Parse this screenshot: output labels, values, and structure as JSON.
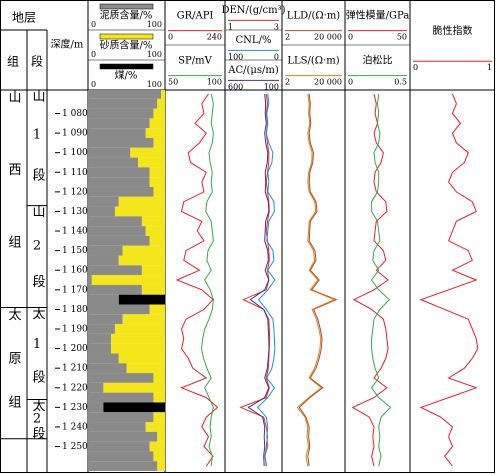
{
  "header": {
    "strata": "地层",
    "formation": "组",
    "member": "段",
    "depth": "深度/m"
  },
  "chart_data": {
    "type": "well-log",
    "ylim": [
      1068,
      1263
    ],
    "yticks": [
      {
        "value": 1080,
        "label": "1 080"
      },
      {
        "value": 1090,
        "label": "1 090"
      },
      {
        "value": 1100,
        "label": "1 100"
      },
      {
        "value": 1110,
        "label": "1 110"
      },
      {
        "value": 1120,
        "label": "1 120"
      },
      {
        "value": 1130,
        "label": "1 130"
      },
      {
        "value": 1140,
        "label": "1 140"
      },
      {
        "value": 1150,
        "label": "1 150"
      },
      {
        "value": 1160,
        "label": "1 160"
      },
      {
        "value": 1170,
        "label": "1 170"
      },
      {
        "value": 1180,
        "label": "1 180"
      },
      {
        "value": 1190,
        "label": "1 190"
      },
      {
        "value": 1200,
        "label": "1 200"
      },
      {
        "value": 1210,
        "label": "1 210"
      },
      {
        "value": 1220,
        "label": "1 220"
      },
      {
        "value": 1230,
        "label": "1 230"
      },
      {
        "value": 1240,
        "label": "1 240"
      },
      {
        "value": 1250,
        "label": "1 250"
      }
    ],
    "depth": [
      1070,
      1075,
      1080,
      1085,
      1090,
      1095,
      1100,
      1105,
      1110,
      1115,
      1120,
      1125,
      1130,
      1135,
      1140,
      1145,
      1150,
      1155,
      1160,
      1165,
      1170,
      1175,
      1180,
      1185,
      1190,
      1195,
      1200,
      1205,
      1210,
      1215,
      1220,
      1225,
      1230,
      1235,
      1240,
      1245,
      1250,
      1255,
      1260
    ],
    "strata": {
      "formations": [
        {
          "name": "山西组",
          "top": 1068,
          "bottom": 1179
        },
        {
          "name": "太原组",
          "top": 1179,
          "bottom": 1246
        }
      ],
      "members": [
        {
          "name": "山1段",
          "top": 1068,
          "bottom": 1127
        },
        {
          "name": "山2段",
          "top": 1127,
          "bottom": 1179
        },
        {
          "name": "太1段",
          "top": 1179,
          "bottom": 1226
        },
        {
          "name": "太2段",
          "top": 1226,
          "bottom": 1246
        }
      ]
    },
    "lithology": {
      "xlim": [
        0,
        100
      ],
      "series": [
        {
          "name": "泥质含量/%",
          "color": "#8a8a8a",
          "xticks": [
            0,
            100
          ],
          "values": [
            95,
            90,
            85,
            80,
            75,
            85,
            55,
            65,
            80,
            80,
            85,
            40,
            35,
            70,
            75,
            80,
            45,
            40,
            70,
            5,
            70,
            40,
            80,
            45,
            35,
            30,
            30,
            40,
            50,
            85,
            20,
            85,
            20,
            85,
            75,
            90,
            80,
            85,
            90
          ]
        },
        {
          "name": "砂质含量/%",
          "color": "#f5e61a",
          "xticks": [
            0,
            100
          ],
          "values": [
            5,
            10,
            15,
            20,
            25,
            15,
            45,
            35,
            20,
            20,
            15,
            60,
            65,
            30,
            25,
            20,
            55,
            60,
            30,
            95,
            30,
            0,
            20,
            55,
            65,
            70,
            70,
            60,
            50,
            15,
            80,
            15,
            0,
            15,
            25,
            10,
            20,
            15,
            10
          ]
        },
        {
          "name": "煤/%",
          "color": "#000000",
          "xticks": [
            0,
            100
          ],
          "values": [
            0,
            0,
            0,
            0,
            0,
            0,
            0,
            0,
            0,
            0,
            0,
            0,
            0,
            0,
            0,
            0,
            0,
            0,
            0,
            0,
            0,
            60,
            0,
            0,
            0,
            0,
            0,
            0,
            0,
            0,
            0,
            0,
            80,
            0,
            0,
            0,
            0,
            0,
            0
          ]
        }
      ]
    },
    "tracks": [
      {
        "curves": [
          {
            "name": "GR/API",
            "color": "#e8202a",
            "xlim": [
              0,
              240
            ],
            "xticks": [
              0,
              240
            ],
            "values": [
              180,
              150,
              160,
              120,
              170,
              140,
              90,
              100,
              170,
              150,
              160,
              70,
              60,
              150,
              130,
              160,
              80,
              70,
              140,
              40,
              150,
              200,
              160,
              80,
              60,
              70,
              60,
              90,
              110,
              170,
              60,
              170,
              220,
              170,
              150,
              180,
              160,
              200,
              170
            ]
          },
          {
            "name": "SP/mV",
            "color": "#3aa84a",
            "xlim": [
              50,
              100
            ],
            "xticks": [
              50,
              100
            ],
            "values": [
              90,
              92,
              91,
              90,
              92,
              91,
              88,
              89,
              91,
              90,
              91,
              86,
              85,
              90,
              91,
              92,
              87,
              86,
              90,
              84,
              89,
              92,
              91,
              88,
              84,
              82,
              81,
              83,
              86,
              90,
              84,
              88,
              92,
              90,
              89,
              90,
              88,
              91,
              90
            ]
          }
        ]
      },
      {
        "curves": [
          {
            "name": "DEN/(g/cm³)",
            "color": "#e0302a",
            "xlim": [
              1,
              3
            ],
            "xticks": [
              1,
              3
            ],
            "values": [
              2.5,
              2.55,
              2.5,
              2.55,
              2.5,
              2.55,
              2.6,
              2.6,
              2.55,
              2.5,
              2.55,
              2.6,
              2.62,
              2.55,
              2.5,
              2.55,
              2.6,
              2.62,
              2.55,
              2.6,
              2.5,
              1.6,
              2.4,
              2.6,
              2.62,
              2.63,
              2.62,
              2.6,
              2.58,
              2.5,
              2.62,
              2.5,
              1.5,
              2.4,
              2.5,
              2.55,
              2.5,
              2.45,
              2.5
            ]
          },
          {
            "name": "CNL/%",
            "color": "#1f8fdc",
            "xlim": [
              100,
              0
            ],
            "xticks": [
              100,
              0
            ],
            "values": [
              22,
              20,
              24,
              22,
              25,
              20,
              12,
              14,
              22,
              20,
              22,
              10,
              9,
              20,
              22,
              24,
              12,
              10,
              22,
              8,
              22,
              40,
              25,
              12,
              10,
              9,
              8,
              10,
              14,
              24,
              9,
              22,
              42,
              25,
              22,
              24,
              22,
              28,
              24
            ]
          },
          {
            "name": "AC/(μs/m)",
            "color": "#5a2a7a",
            "xlim": [
              600,
              100
            ],
            "xticks": [
              600,
              100
            ],
            "values": [
              240,
              230,
              235,
              225,
              240,
              230,
              210,
              215,
              235,
              230,
              235,
              205,
              200,
              230,
              235,
              240,
              210,
              205,
              235,
              200,
              240,
              380,
              250,
              210,
              205,
              200,
              198,
              205,
              215,
              240,
              200,
              240,
              400,
              260,
              240,
              245,
              240,
              250,
              245
            ]
          }
        ]
      },
      {
        "curves": [
          {
            "name": "LLD/(Ω·m)",
            "color": "#a0522d",
            "scale": "log",
            "xlim": [
              2,
              20000
            ],
            "xticks": [
              2,
              {
                "value": 20000,
                "label": "20 000"
              }
            ],
            "values": [
              100,
              120,
              110,
              130,
              100,
              120,
              200,
              180,
              110,
              100,
              120,
              300,
              350,
              120,
              110,
              100,
              250,
              300,
              120,
              500,
              150,
              8000,
              200,
              400,
              600,
              800,
              700,
              500,
              300,
              120,
              900,
              110,
              20,
              60,
              100,
              90,
              110,
              80,
              100
            ]
          },
          {
            "name": "LLS/(Ω·m)",
            "color": "#e08020",
            "scale": "log",
            "xlim": [
              2,
              20000
            ],
            "xticks": [
              2,
              {
                "value": 20000,
                "label": "20 000"
              }
            ],
            "values": [
              80,
              100,
              90,
              110,
              80,
              100,
              160,
              150,
              90,
              80,
              100,
              250,
              280,
              100,
              90,
              80,
              200,
              240,
              100,
              400,
              120,
              6000,
              160,
              320,
              480,
              650,
              560,
              400,
              240,
              100,
              700,
              90,
              15,
              50,
              80,
              70,
              90,
              60,
              80
            ]
          }
        ]
      },
      {
        "curves": [
          {
            "name": "弹性模量/GPa",
            "color": "#e8202a",
            "xlim": [
              0,
              50
            ],
            "xticks": [
              0,
              50
            ],
            "values": [
              22,
              24,
              23,
              25,
              22,
              24,
              30,
              28,
              23,
              22,
              24,
              32,
              33,
              24,
              23,
              22,
              30,
              32,
              24,
              34,
              22,
              5,
              20,
              30,
              32,
              33,
              34,
              32,
              28,
              22,
              33,
              22,
              4,
              18,
              22,
              21,
              22,
              20,
              22
            ]
          },
          {
            "name": "泊松比",
            "color": "#3aa84a",
            "xlim": [
              0,
              0.5
            ],
            "xticks": [
              0,
              0.5
            ],
            "values": [
              0.26,
              0.25,
              0.26,
              0.25,
              0.27,
              0.26,
              0.22,
              0.23,
              0.26,
              0.26,
              0.25,
              0.2,
              0.2,
              0.25,
              0.26,
              0.27,
              0.22,
              0.21,
              0.26,
              0.2,
              0.26,
              0.35,
              0.27,
              0.22,
              0.21,
              0.2,
              0.2,
              0.21,
              0.23,
              0.26,
              0.2,
              0.26,
              0.36,
              0.28,
              0.26,
              0.27,
              0.26,
              0.28,
              0.26
            ]
          }
        ]
      },
      {
        "curves": [
          {
            "name": "脆性指数",
            "color": "#e8202a",
            "xlim": [
              0,
              1
            ],
            "xticks": [
              0,
              1
            ],
            "values": [
              0.5,
              0.55,
              0.5,
              0.6,
              0.5,
              0.55,
              0.7,
              0.65,
              0.5,
              0.45,
              0.55,
              0.75,
              0.8,
              0.55,
              0.5,
              0.45,
              0.7,
              0.75,
              0.5,
              0.8,
              0.45,
              0.1,
              0.4,
              0.7,
              0.75,
              0.8,
              0.82,
              0.75,
              0.65,
              0.45,
              0.8,
              0.45,
              0.1,
              0.35,
              0.5,
              0.45,
              0.5,
              0.4,
              0.5
            ]
          }
        ]
      }
    ]
  }
}
